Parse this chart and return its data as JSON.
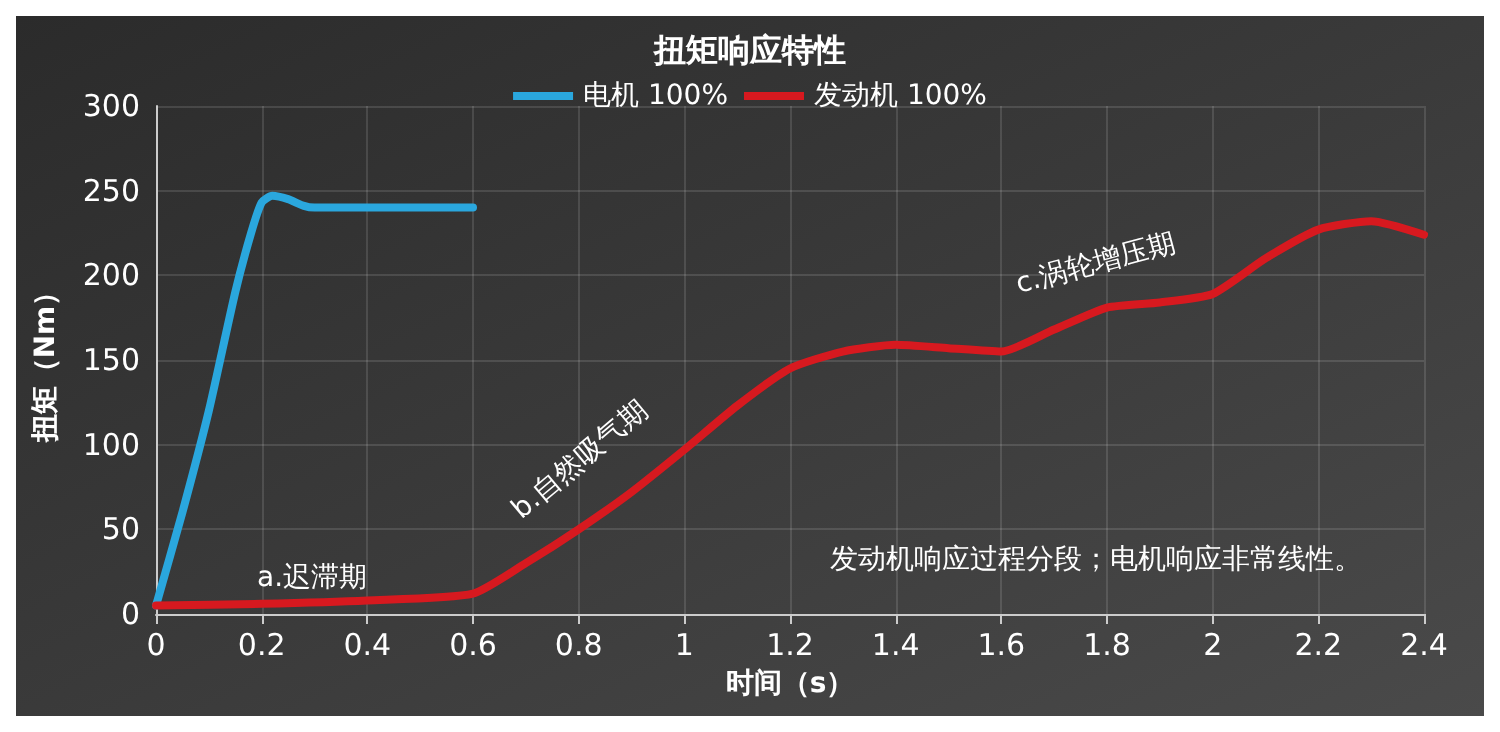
{
  "chart_data": {
    "type": "line",
    "title": "扭矩响应特性",
    "xlabel": "时间（s）",
    "ylabel": "扭矩（Nm）",
    "xlim": [
      0,
      2.4
    ],
    "xticks": [
      0,
      0.2,
      0.4,
      0.6,
      0.8,
      1,
      1.2,
      1.4,
      1.6,
      1.8,
      2,
      2.2,
      2.4
    ],
    "ylim": [
      0,
      300
    ],
    "yticks": [
      0,
      50,
      100,
      150,
      200,
      250,
      300
    ],
    "grid": true,
    "legend": "top",
    "marker": "none",
    "line_style": "solid",
    "series": [
      {
        "name": "电机 100%",
        "color": "#2aa7de",
        "x": [
          0,
          0.05,
          0.1,
          0.15,
          0.18,
          0.2,
          0.22,
          0.25,
          0.28,
          0.3,
          0.6
        ],
        "values": [
          5,
          60,
          120,
          190,
          225,
          243,
          247,
          245,
          241,
          240,
          240
        ]
      },
      {
        "name": "发动机 100%",
        "color": "#d7191f",
        "x": [
          0,
          0.2,
          0.4,
          0.6,
          0.7,
          0.8,
          0.9,
          1,
          1.1,
          1.2,
          1.3,
          1.4,
          1.5,
          1.6,
          1.7,
          1.8,
          1.9,
          2,
          2.1,
          2.2,
          2.3,
          2.4
        ],
        "values": [
          5,
          6,
          8,
          12,
          30,
          50,
          72,
          97,
          123,
          145,
          155,
          159,
          157,
          155,
          168,
          181,
          184,
          189,
          210,
          227,
          232,
          224
        ]
      }
    ],
    "annotations": [
      "a.迟滞期",
      "b.自然吸气期",
      "c.涡轮增压期",
      "发动机响应过程分段；电机响应非常线性。"
    ]
  }
}
